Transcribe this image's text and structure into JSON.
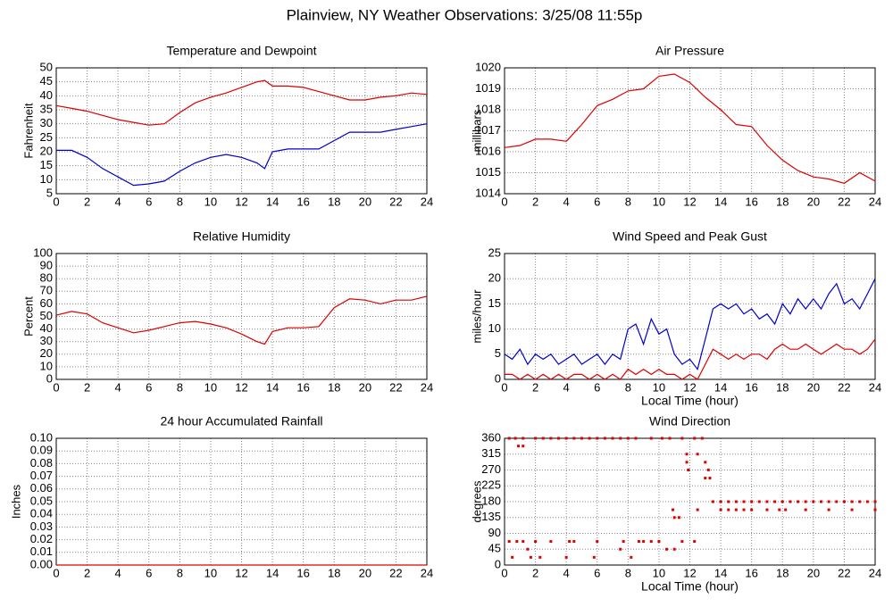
{
  "title": "Plainview, NY Weather Observations: 3/25/08 11:55p",
  "chart_data": [
    {
      "type": "line",
      "title": "Temperature and Dewpoint",
      "ylabel": "Fahrenheit",
      "x": [
        0,
        1,
        2,
        3,
        4,
        5,
        6,
        7,
        8,
        9,
        10,
        11,
        12,
        13,
        13.5,
        14,
        15,
        16,
        17,
        18,
        19,
        20,
        21,
        22,
        23,
        24
      ],
      "series": [
        {
          "color": "#dd0000",
          "values": [
            36.5,
            35.5,
            34.5,
            33,
            31.5,
            30.5,
            29.5,
            30,
            34,
            37.5,
            39.5,
            41,
            43,
            45,
            45.5,
            43.5,
            43.5,
            43,
            41.5,
            40,
            38.5,
            38.5,
            39.5,
            40,
            41,
            40.5
          ]
        },
        {
          "color": "#0000cc",
          "values": [
            20.5,
            20.5,
            18,
            14,
            11,
            8,
            8.5,
            9.5,
            13,
            16,
            18,
            19,
            18,
            16,
            14,
            20,
            21,
            21,
            21,
            24,
            27,
            27,
            27,
            28,
            29,
            30
          ]
        }
      ],
      "xlim": [
        0,
        24
      ],
      "xticks": [
        0,
        2,
        4,
        6,
        8,
        10,
        12,
        14,
        16,
        18,
        20,
        22,
        24
      ],
      "ylim": [
        5,
        50
      ],
      "yticks": [
        5,
        10,
        15,
        20,
        25,
        30,
        35,
        40,
        45,
        50
      ],
      "grid": true
    },
    {
      "type": "line",
      "title": "Air Pressure",
      "ylabel": "millibars",
      "x": [
        0,
        1,
        2,
        3,
        4,
        5,
        6,
        7,
        8,
        9,
        10,
        11,
        12,
        13,
        14,
        15,
        16,
        17,
        18,
        19,
        20,
        21,
        22,
        23,
        24
      ],
      "series": [
        {
          "color": "#dd0000",
          "values": [
            1016.2,
            1016.3,
            1016.6,
            1016.6,
            1016.5,
            1017.3,
            1018.2,
            1018.5,
            1018.9,
            1019.0,
            1019.6,
            1019.7,
            1019.3,
            1018.6,
            1018.0,
            1017.3,
            1017.2,
            1016.3,
            1015.6,
            1015.1,
            1014.8,
            1014.7,
            1014.5,
            1015.0,
            1014.6
          ]
        }
      ],
      "xlim": [
        0,
        24
      ],
      "xticks": [
        0,
        2,
        4,
        6,
        8,
        10,
        12,
        14,
        16,
        18,
        20,
        22,
        24
      ],
      "ylim": [
        1014,
        1020
      ],
      "yticks": [
        1014,
        1015,
        1016,
        1017,
        1018,
        1019,
        1020
      ],
      "grid": true
    },
    {
      "type": "line",
      "title": "Relative Humidity",
      "ylabel": "Percent",
      "x": [
        0,
        1,
        2,
        3,
        4,
        5,
        6,
        7,
        8,
        9,
        10,
        11,
        12,
        13,
        13.5,
        14,
        15,
        16,
        17,
        18,
        19,
        20,
        21,
        22,
        23,
        24
      ],
      "series": [
        {
          "color": "#dd0000",
          "values": [
            51,
            54,
            52,
            45,
            41,
            37,
            39,
            42,
            45,
            46,
            44,
            41,
            36,
            30,
            28,
            38,
            41,
            41,
            42,
            57,
            64,
            63,
            60,
            63,
            63,
            66
          ]
        }
      ],
      "xlim": [
        0,
        24
      ],
      "xticks": [
        0,
        2,
        4,
        6,
        8,
        10,
        12,
        14,
        16,
        18,
        20,
        22,
        24
      ],
      "ylim": [
        0,
        100
      ],
      "yticks": [
        0,
        10,
        20,
        30,
        40,
        50,
        60,
        70,
        80,
        90,
        100
      ],
      "grid": true
    },
    {
      "type": "line",
      "title": "Wind Speed and Peak Gust",
      "ylabel": "miles/hour",
      "xlabel": "Local Time (hour)",
      "x": [
        0,
        0.5,
        1,
        1.5,
        2,
        2.5,
        3,
        3.5,
        4,
        4.5,
        5,
        5.5,
        6,
        6.5,
        7,
        7.5,
        8,
        8.5,
        9,
        9.5,
        10,
        10.5,
        11,
        11.5,
        12,
        12.5,
        13,
        13.5,
        14,
        14.5,
        15,
        15.5,
        16,
        16.5,
        17,
        17.5,
        18,
        18.5,
        19,
        19.5,
        20,
        20.5,
        21,
        21.5,
        22,
        22.5,
        23,
        23.5,
        24
      ],
      "series": [
        {
          "color": "#0000cc",
          "values": [
            5,
            4,
            6,
            3,
            5,
            4,
            5,
            3,
            4,
            5,
            3,
            4,
            5,
            3,
            5,
            4,
            10,
            11,
            7,
            12,
            9,
            10,
            5,
            3,
            4,
            2,
            8,
            14,
            15,
            14,
            15,
            13,
            14,
            12,
            13,
            11,
            15,
            13,
            16,
            14,
            16,
            14,
            17,
            19,
            15,
            16,
            14,
            17,
            20
          ]
        },
        {
          "color": "#dd0000",
          "values": [
            1,
            1,
            0,
            1,
            0,
            1,
            0,
            1,
            0,
            1,
            1,
            0,
            1,
            0,
            1,
            0,
            2,
            1,
            2,
            1,
            2,
            1,
            1,
            0,
            1,
            0,
            3,
            6,
            5,
            4,
            5,
            4,
            5,
            5,
            4,
            6,
            7,
            6,
            6,
            7,
            6,
            5,
            6,
            7,
            6,
            6,
            5,
            6,
            8
          ]
        }
      ],
      "xlim": [
        0,
        24
      ],
      "xticks": [
        0,
        2,
        4,
        6,
        8,
        10,
        12,
        14,
        16,
        18,
        20,
        22,
        24
      ],
      "ylim": [
        0,
        25
      ],
      "yticks": [
        0,
        5,
        10,
        15,
        20,
        25
      ],
      "grid": true
    },
    {
      "type": "line",
      "title": "24 hour Accumulated Rainfall",
      "ylabel": "Inches",
      "x": [
        0,
        24
      ],
      "series": [
        {
          "color": "#dd0000",
          "values": [
            0,
            0
          ]
        }
      ],
      "xlim": [
        0,
        24
      ],
      "xticks": [
        0,
        2,
        4,
        6,
        8,
        10,
        12,
        14,
        16,
        18,
        20,
        22,
        24
      ],
      "ylim": [
        0,
        0.1
      ],
      "yticks": [
        {
          "value": 0,
          "label": "0.00"
        },
        {
          "value": 0.01,
          "label": "0.01"
        },
        {
          "value": 0.02,
          "label": "0.02"
        },
        {
          "value": 0.03,
          "label": "0.03"
        },
        {
          "value": 0.04,
          "label": "0.04"
        },
        {
          "value": 0.05,
          "label": "0.05"
        },
        {
          "value": 0.06,
          "label": "0.06"
        },
        {
          "value": 0.07,
          "label": "0.07"
        },
        {
          "value": 0.08,
          "label": "0.08"
        },
        {
          "value": 0.09,
          "label": "0.09"
        },
        {
          "value": 0.1,
          "label": "0.10"
        }
      ],
      "grid": true
    },
    {
      "type": "scatter",
      "title": "Wind Direction",
      "ylabel": "degrees",
      "xlabel": "Local Time (hour)",
      "x": [
        0.3,
        0.5,
        0.8,
        1.2,
        1.5,
        1.7,
        2,
        2.3,
        3,
        4,
        4.2,
        4.5,
        5.8,
        6,
        7.5,
        7.7,
        8.2,
        8.7,
        9,
        9.5,
        10,
        10.5,
        11,
        11.5,
        12.3,
        0.3,
        0.7,
        1.2,
        2,
        2.5,
        3,
        3.5,
        4,
        4.5,
        5,
        5.5,
        6,
        6.5,
        7,
        7.5,
        8,
        8.5,
        9.5,
        10.2,
        10.7,
        11.5,
        12.3,
        12.8,
        0.9,
        1.2,
        11.8,
        11.8,
        11.9,
        12.5,
        13,
        13.2,
        13,
        13.3,
        10.9,
        11,
        11.3,
        12.5,
        13.5,
        14,
        14.5,
        15,
        15.5,
        16,
        16.5,
        17,
        17.5,
        18,
        18.5,
        19,
        19.5,
        20,
        20.5,
        21,
        21.5,
        22,
        22.5,
        23,
        23.5,
        24,
        14,
        14.5,
        15,
        15.5,
        16,
        17,
        17.8,
        18.2,
        19.5,
        21,
        22.5,
        24
      ],
      "series": [
        {
          "color": "#dd0000",
          "values": [
            67,
            22,
            67,
            67,
            45,
            22,
            67,
            22,
            67,
            22,
            67,
            67,
            22,
            67,
            45,
            67,
            22,
            67,
            67,
            67,
            67,
            45,
            45,
            67,
            67,
            360,
            360,
            360,
            360,
            360,
            360,
            360,
            360,
            360,
            360,
            360,
            360,
            360,
            360,
            360,
            360,
            360,
            360,
            360,
            360,
            360,
            360,
            360,
            338,
            338,
            315,
            292,
            270,
            315,
            292,
            270,
            247,
            247,
            157,
            135,
            135,
            157,
            180,
            180,
            180,
            180,
            180,
            180,
            180,
            180,
            180,
            180,
            180,
            180,
            180,
            180,
            180,
            180,
            180,
            180,
            180,
            180,
            180,
            180,
            157,
            157,
            157,
            157,
            157,
            157,
            157,
            157,
            157,
            157,
            157,
            157
          ]
        }
      ],
      "xlim": [
        0,
        24
      ],
      "xticks": [
        0,
        2,
        4,
        6,
        8,
        10,
        12,
        14,
        16,
        18,
        20,
        22,
        24
      ],
      "ylim": [
        0,
        360
      ],
      "yticks": [
        0,
        45,
        90,
        135,
        180,
        225,
        270,
        315,
        360
      ],
      "grid": true
    }
  ]
}
